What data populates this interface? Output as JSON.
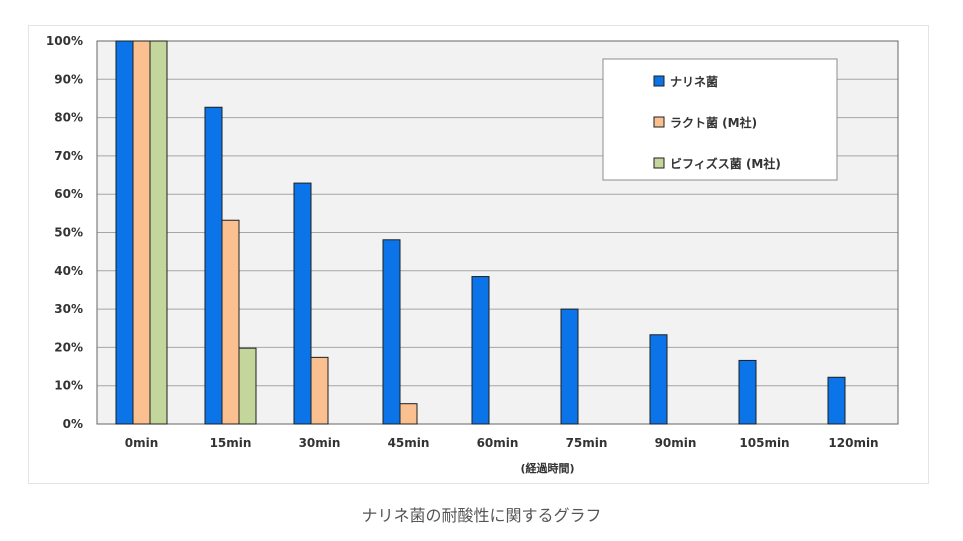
{
  "caption": "ナリネ菌の耐酸性に関するグラフ",
  "chart_data": {
    "type": "bar",
    "categories": [
      "0min",
      "15min",
      "30min",
      "45min",
      "60min",
      "75min",
      "90min",
      "105min",
      "120min"
    ],
    "xlabel": "(経過時間)",
    "ylabel": "",
    "ylim": [
      0,
      100
    ],
    "y_ticks": [
      "0%",
      "10%",
      "20%",
      "30%",
      "40%",
      "50%",
      "60%",
      "70%",
      "80%",
      "90%",
      "100%"
    ],
    "grid": true,
    "legend_position": "top-right",
    "series": [
      {
        "name": "ナリネ菌",
        "color": "#0a74e8",
        "values": [
          100,
          82.7,
          62.9,
          48.1,
          38.5,
          30.0,
          23.3,
          16.6,
          12.2
        ]
      },
      {
        "name": "ラクト菌 (M社)",
        "color": "#fac090",
        "values": [
          100,
          53.2,
          17.4,
          5.3,
          null,
          null,
          null,
          null,
          null
        ]
      },
      {
        "name": "ビフィズス菌 (M社)",
        "color": "#c3d69b",
        "values": [
          100,
          19.8,
          null,
          null,
          null,
          null,
          null,
          null,
          null
        ]
      }
    ]
  }
}
